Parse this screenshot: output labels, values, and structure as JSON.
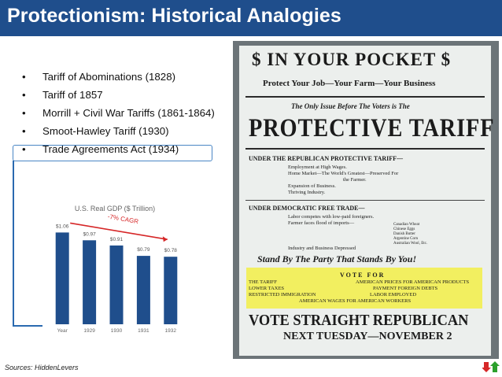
{
  "slide": {
    "title": "Protectionism: Historical Analogies",
    "source": "Sources: HiddenLevers"
  },
  "bullets": [
    {
      "text": "Tariff of Abominations (1828)"
    },
    {
      "text": "Tariff of 1857"
    },
    {
      "text": "Morrill + Civil War Tariffs (1861-1864)"
    },
    {
      "text": "Smoot-Hawley Tariff (1930)"
    },
    {
      "text": "Trade Agreements Act (1934)"
    }
  ],
  "chart_data": {
    "type": "bar",
    "title": "U.S. Real GDP ($ Trillion)",
    "categories": [
      "Year",
      "1929",
      "1930",
      "1931",
      "1932"
    ],
    "values": [
      1.06,
      0.97,
      0.91,
      0.79,
      0.78
    ],
    "data_labels": [
      "$1.06",
      "$0.97",
      "$0.91",
      "$0.79",
      "$0.78"
    ],
    "annotation": "-7% CAGR",
    "ylim": [
      0,
      1.2
    ],
    "bar_color": "#1f4e8c",
    "annotation_color": "#d62728",
    "grid": false
  },
  "poster": {
    "line1": "$ IN YOUR POCKET $",
    "line2": "Protect Your Job—Your Farm—Your Business",
    "line3": "The Only Issue Before The Voters is The",
    "line4": "PROTECTIVE TARIFF",
    "rep_header": "UNDER THE REPUBLICAN PROTECTIVE TARIFF—",
    "rep_items": [
      "Employment at High Wages.",
      "Home Market—The World's Greatest—Preserved For",
      "the Farmer.",
      "Expansion of Business.",
      "Thriving Industry."
    ],
    "dem_header": "UNDER DEMOCRATIC FREE TRADE—",
    "dem_items": [
      "Labor competes with low-paid foreigners.",
      "Farmer faces flood of imports—"
    ],
    "imports": [
      "Canadian Wheat",
      "Chinese Eggs",
      "Danish Butter",
      "Argentine Corn",
      "Australian Wool, Etc."
    ],
    "dem_footer": "Industry and Business Depressed",
    "stand": "Stand By The Party That Stands By You!",
    "vote_for": "VOTE FOR",
    "vote_left": [
      "THE TARIFF",
      "LOWER TAXES",
      "RESTRICTED IMMIGRATION"
    ],
    "vote_right": [
      "AMERICAN PRICES FOR AMERICAN PRODUCTS",
      "PAYMENT FOREIGN DEBTS",
      "LABOR EMPLOYED"
    ],
    "vote_bottom": "AMERICAN WAGES FOR AMERICAN WORKERS",
    "vote_straight": "VOTE STRAIGHT REPUBLICAN",
    "next_tuesday": "NEXT TUESDAY—NOVEMBER 2"
  },
  "colors": {
    "title_bar": "#1f4e8c",
    "highlight_border": "#4a86c5"
  },
  "logo": {
    "icon": "hiddenlevers-arrows-icon"
  }
}
